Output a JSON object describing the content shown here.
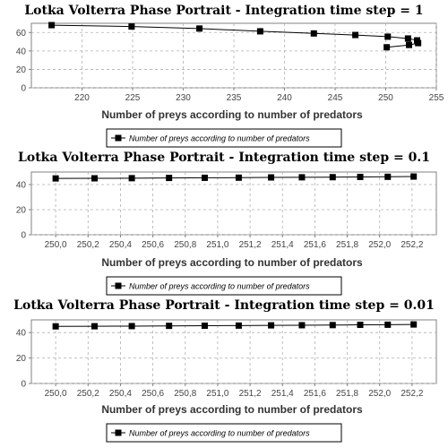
{
  "chart_data": [
    {
      "type": "line",
      "title": "Lotka Volterra Phase Portrait - Integration time step = 1",
      "xlabel": "Number of preys according to number of predators",
      "ylabel": "",
      "xlim": [
        215,
        255
      ],
      "ylim": [
        0,
        70
      ],
      "xticks": [
        220,
        225,
        230,
        235,
        240,
        245,
        250,
        255
      ],
      "yticks": [
        0,
        20,
        40,
        60
      ],
      "grid": true,
      "legend_position": "bottom",
      "decimal_comma": false,
      "series": [
        {
          "name": "Number of preys according to number of predators",
          "x": [
            217.0,
            224.9,
            231.6,
            237.6,
            242.9,
            247.0,
            250.2,
            252.2,
            253.1,
            253.2,
            252.3,
            250.1
          ],
          "y": [
            68.0,
            66.5,
            64.3,
            61.3,
            59.0,
            57.3,
            55.5,
            53.5,
            51.5,
            48.5,
            46.5,
            44.0
          ]
        }
      ]
    },
    {
      "type": "line",
      "title": "Lotka Volterra Phase Portrait - Integration time step = 0.1",
      "xlabel": "Number of preys according to number of predators",
      "ylabel": "",
      "xlim": [
        249.85,
        252.35
      ],
      "ylim": [
        0,
        50
      ],
      "xticks": [
        250.0,
        250.2,
        250.4,
        250.6,
        250.8,
        251.0,
        251.2,
        251.4,
        251.6,
        251.8,
        252.0,
        252.2
      ],
      "yticks": [
        0,
        20,
        40
      ],
      "grid": true,
      "legend_position": "bottom",
      "decimal_comma": true,
      "series": [
        {
          "name": "Number of preys according to number of predators",
          "x": [
            250.0,
            250.24,
            250.47,
            250.7,
            250.92,
            251.13,
            251.33,
            251.52,
            251.71,
            251.88,
            252.05,
            252.21
          ],
          "y": [
            44.9,
            45.0,
            45.1,
            45.3,
            45.4,
            45.5,
            45.7,
            45.8,
            45.9,
            46.1,
            46.2,
            46.4
          ]
        }
      ]
    },
    {
      "type": "line",
      "title": "Lotka Volterra Phase Portrait - Integration time step = 0.01",
      "xlabel": "Number of preys according to number of predators",
      "ylabel": "",
      "xlim": [
        249.85,
        252.35
      ],
      "ylim": [
        0,
        50
      ],
      "xticks": [
        250.0,
        250.2,
        250.4,
        250.6,
        250.8,
        251.0,
        251.2,
        251.4,
        251.6,
        251.8,
        252.0,
        252.2
      ],
      "yticks": [
        0,
        20,
        40
      ],
      "grid": true,
      "legend_position": "bottom",
      "decimal_comma": true,
      "series": [
        {
          "name": "Number of preys according to number of predators",
          "x": [
            250.0,
            250.24,
            250.47,
            250.7,
            250.92,
            251.13,
            251.33,
            251.52,
            251.71,
            251.88,
            252.05,
            252.21
          ],
          "y": [
            44.9,
            45.0,
            45.1,
            45.3,
            45.4,
            45.5,
            45.7,
            45.8,
            45.9,
            46.1,
            46.2,
            46.4
          ]
        }
      ]
    }
  ],
  "colors": {
    "series": "#000000",
    "grid": "#b0b0b0",
    "axis": "#808080"
  }
}
